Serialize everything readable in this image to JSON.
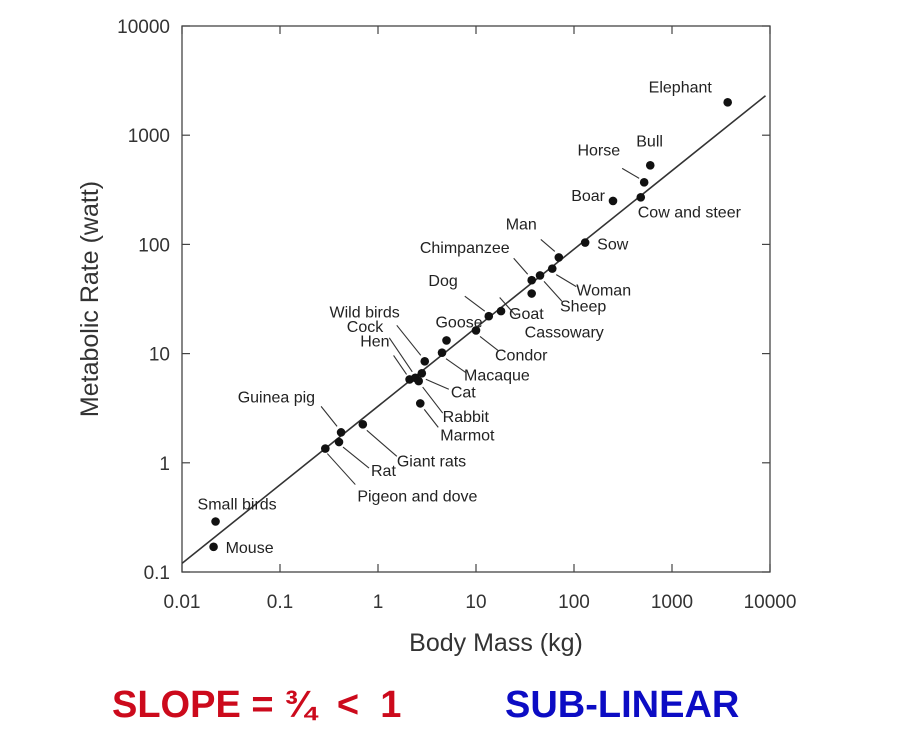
{
  "chart_data": {
    "type": "scatter",
    "xlabel": "Body Mass (kg)",
    "ylabel": "Metabolic Rate (watt)",
    "xscale": "log",
    "yscale": "log",
    "xlim": [
      0.01,
      10000
    ],
    "ylim": [
      0.1,
      10000
    ],
    "x_ticks": [
      "0.01",
      "0.1",
      "1",
      "10",
      "100",
      "1000",
      "10000"
    ],
    "y_ticks": [
      "0.1",
      "1",
      "10",
      "100",
      "1000",
      "10000"
    ],
    "grid": false,
    "fit_line": {
      "x": [
        0.01,
        9000
      ],
      "y": [
        0.12,
        2300
      ]
    },
    "points": [
      {
        "label": "Mouse",
        "x": 0.021,
        "y": 0.17
      },
      {
        "label": "Small birds",
        "x": 0.022,
        "y": 0.29
      },
      {
        "label": "Pigeon and dove",
        "x": 0.29,
        "y": 1.35
      },
      {
        "label": "Rat",
        "x": 0.4,
        "y": 1.55
      },
      {
        "label": "Guinea pig",
        "x": 0.42,
        "y": 1.9
      },
      {
        "label": "Giant rats",
        "x": 0.7,
        "y": 2.25
      },
      {
        "label": "Hen",
        "x": 2.1,
        "y": 5.8
      },
      {
        "label": "Cock",
        "x": 2.4,
        "y": 6.0
      },
      {
        "label": "Marmot",
        "x": 2.7,
        "y": 3.5
      },
      {
        "label": "Rabbit",
        "x": 2.6,
        "y": 5.6
      },
      {
        "label": "Cat",
        "x": 2.8,
        "y": 6.6
      },
      {
        "label": "Wild birds",
        "x": 3.0,
        "y": 8.5
      },
      {
        "label": "Macaque",
        "x": 4.5,
        "y": 10.2
      },
      {
        "label": "Goose",
        "x": 5.0,
        "y": 13.2
      },
      {
        "label": "Condor",
        "x": 10.0,
        "y": 16.3
      },
      {
        "label": "Dog",
        "x": 13.5,
        "y": 22.0
      },
      {
        "label": "Goat",
        "x": 18.0,
        "y": 24.5
      },
      {
        "label": "Cassowary",
        "x": 37.0,
        "y": 35.5
      },
      {
        "label": "Chimpanzee",
        "x": 37.0,
        "y": 47.0
      },
      {
        "label": "Sheep",
        "x": 45.0,
        "y": 52.0
      },
      {
        "label": "Woman",
        "x": 60.0,
        "y": 60.0
      },
      {
        "label": "Man",
        "x": 70.0,
        "y": 76.0
      },
      {
        "label": "Sow",
        "x": 130.0,
        "y": 104.0
      },
      {
        "label": "Boar",
        "x": 250.0,
        "y": 250.0
      },
      {
        "label": "Cow and steer",
        "x": 480.0,
        "y": 270.0
      },
      {
        "label": "Horse",
        "x": 520.0,
        "y": 370.0
      },
      {
        "label": "Bull",
        "x": 600.0,
        "y": 530.0
      },
      {
        "label": "Elephant",
        "x": 3700.0,
        "y": 2000.0
      }
    ]
  },
  "footer": {
    "slope_text": "SLOPE = ¾  <  1",
    "slope_color": "#cc0a1c",
    "sublinear_text": "SUB-LINEAR",
    "sublinear_color": "#0c0cc4"
  }
}
